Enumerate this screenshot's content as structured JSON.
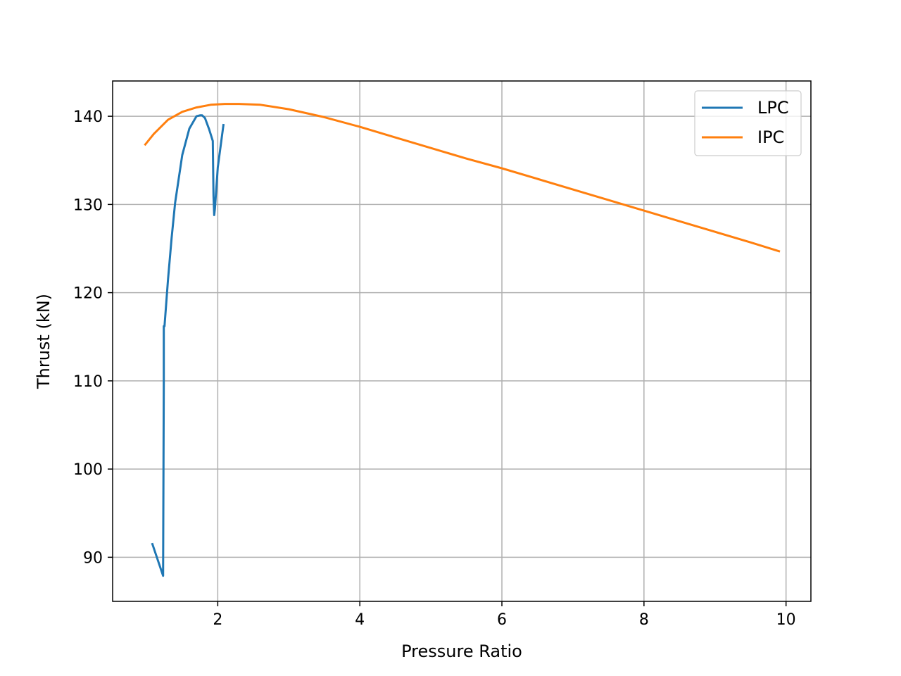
{
  "chart_data": {
    "type": "line",
    "title": "",
    "xlabel": "Pressure Ratio",
    "ylabel": "Thrust (kN)",
    "xlim": [
      0.52,
      10.35
    ],
    "ylim": [
      85.0,
      144.0
    ],
    "xticks": [
      2,
      4,
      6,
      8,
      10
    ],
    "yticks": [
      90,
      100,
      110,
      120,
      130,
      140
    ],
    "grid": true,
    "legend_position": "upper right",
    "series": [
      {
        "name": "LPC",
        "color": "#1f77b4",
        "x": [
          1.08,
          1.23,
          1.24,
          1.24,
          1.25,
          1.3,
          1.35,
          1.4,
          1.5,
          1.6,
          1.7,
          1.75,
          1.78,
          1.82,
          1.88,
          1.93,
          1.94,
          1.95,
          1.96,
          2.0,
          2.05,
          2.08
        ],
        "y": [
          91.5,
          87.9,
          110.0,
          116.2,
          116.2,
          121.5,
          126.2,
          130.2,
          135.6,
          138.6,
          140.0,
          140.1,
          140.1,
          139.8,
          138.5,
          137.2,
          131.0,
          128.8,
          129.5,
          134.2,
          137.2,
          139.0
        ]
      },
      {
        "name": "IPC",
        "color": "#ff7f0e",
        "x": [
          0.98,
          1.1,
          1.3,
          1.5,
          1.7,
          1.9,
          2.1,
          2.3,
          2.6,
          3.0,
          3.5,
          4.0,
          4.5,
          5.0,
          5.5,
          6.0,
          6.5,
          7.0,
          7.5,
          8.0,
          8.5,
          9.0,
          9.5,
          9.9
        ],
        "y": [
          136.8,
          138.0,
          139.6,
          140.5,
          141.0,
          141.3,
          141.4,
          141.4,
          141.3,
          140.8,
          139.9,
          138.8,
          137.6,
          136.4,
          135.2,
          134.1,
          132.9,
          131.7,
          130.5,
          129.3,
          128.1,
          126.9,
          125.7,
          124.7
        ]
      }
    ]
  }
}
